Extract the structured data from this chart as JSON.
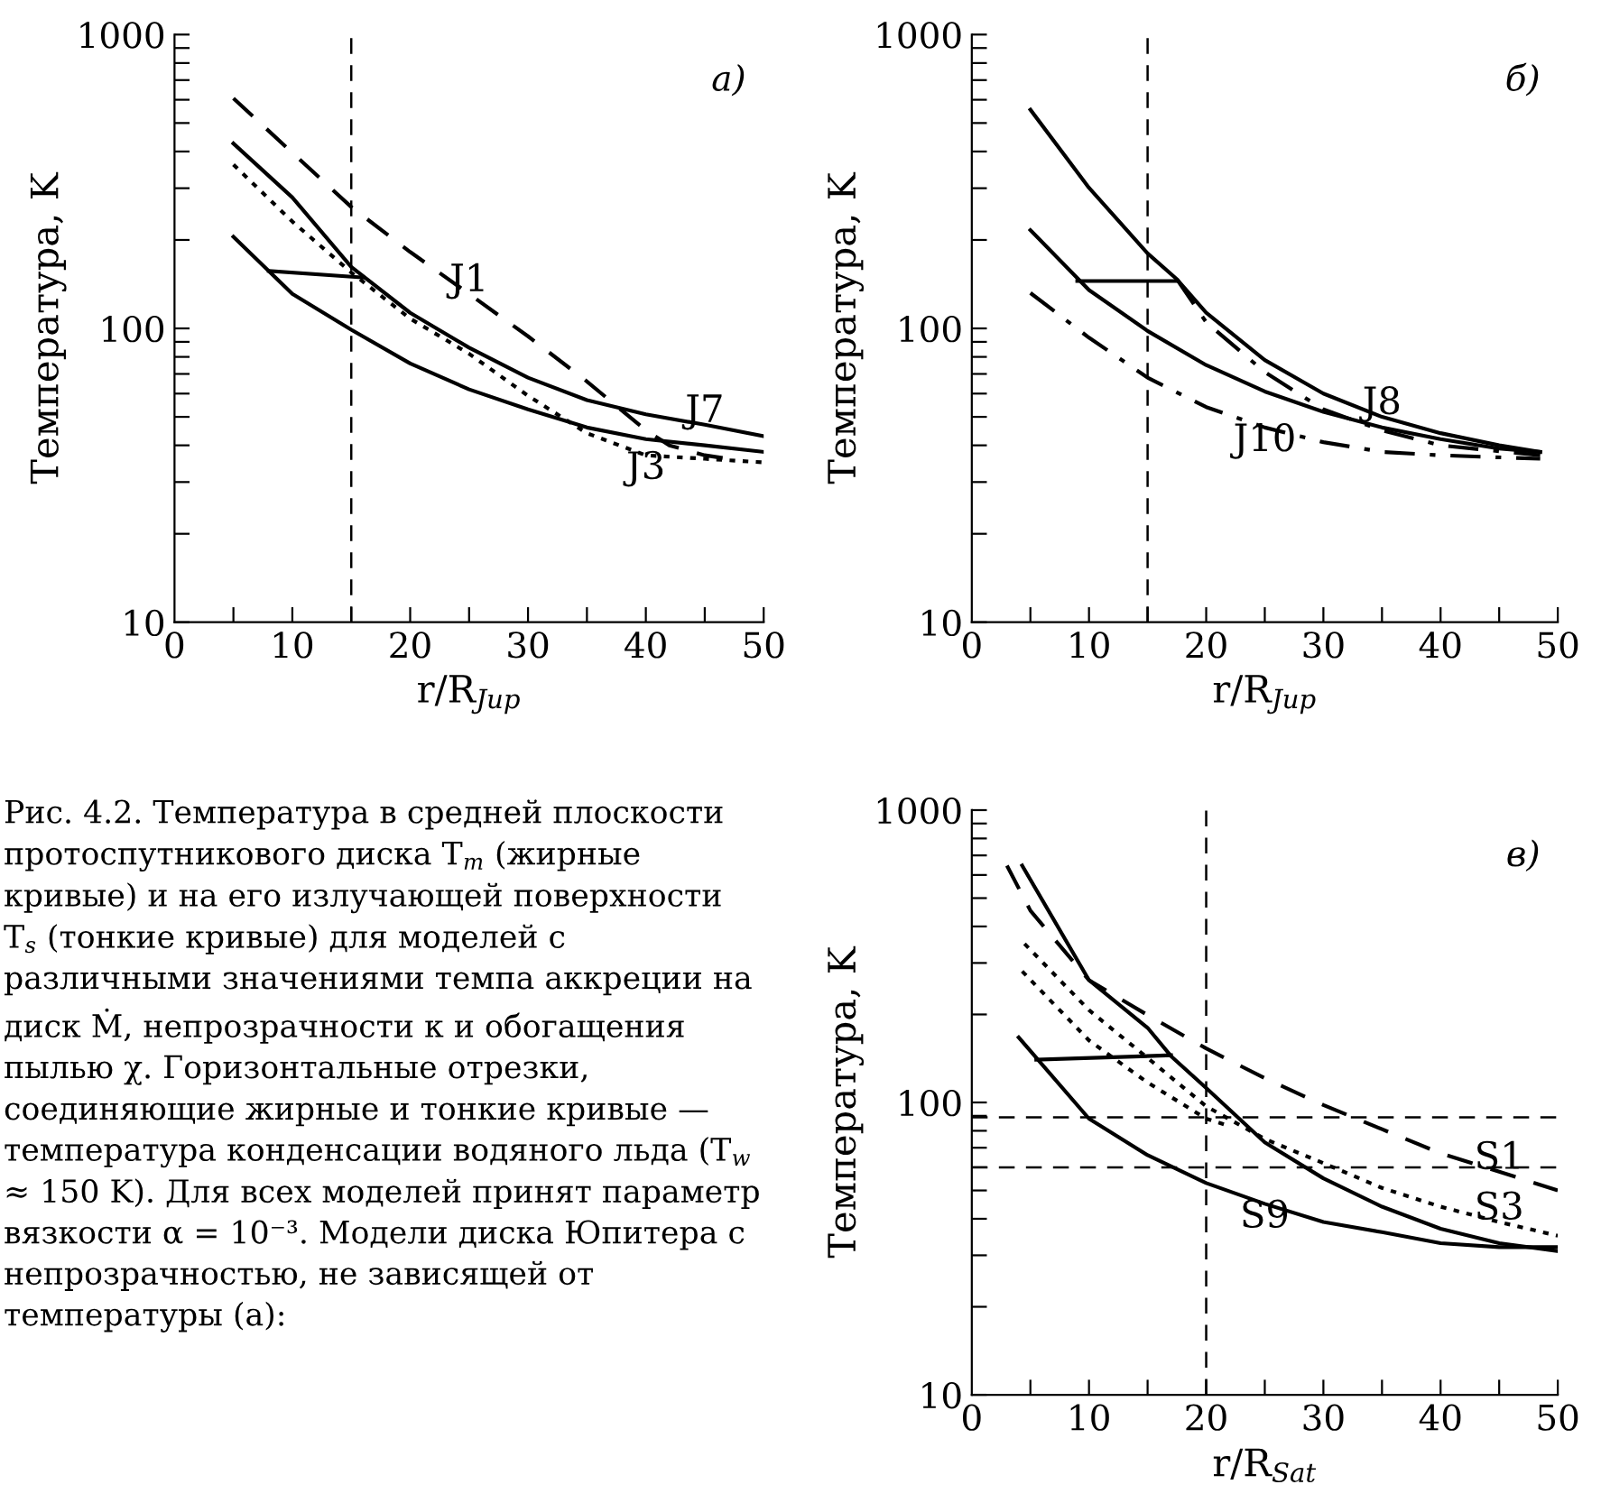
{
  "chart_data": [
    {
      "type": "line",
      "title": "а)",
      "xlabel": "r/R$_{Jup}$",
      "ylabel": "Температура, K",
      "log": true,
      "xlim": [
        0,
        50
      ],
      "ylim": [
        10,
        1000
      ],
      "xticks": [
        0,
        {
          "value": 5,
          "label": null
        },
        10,
        {
          "value": 15,
          "label": null
        },
        20,
        {
          "value": 25,
          "label": null
        },
        30,
        {
          "value": 35,
          "label": null
        },
        40,
        {
          "value": 45,
          "label": null
        },
        50
      ],
      "yticks": [
        10,
        {
          "value": 20,
          "label": null
        },
        {
          "value": 30,
          "label": null
        },
        {
          "value": 40,
          "label": null
        },
        {
          "value": 50,
          "label": null
        },
        {
          "value": 60,
          "label": null
        },
        {
          "value": 70,
          "label": null
        },
        {
          "value": 80,
          "label": null
        },
        {
          "value": 90,
          "label": null
        },
        100,
        {
          "value": 200,
          "label": null
        },
        {
          "value": 300,
          "label": null
        },
        {
          "value": 400,
          "label": null
        },
        {
          "value": 500,
          "label": null
        },
        {
          "value": 600,
          "label": null
        },
        {
          "value": 700,
          "label": null
        },
        {
          "value": 800,
          "label": null
        },
        {
          "value": 900,
          "label": null
        },
        1000
      ],
      "ref_lines": [
        {
          "axis": "x",
          "value": 15,
          "line_style": "dashed",
          "color": "#000000"
        }
      ],
      "series": [
        {
          "color": "#000000",
          "line_style": "solid",
          "x": [
            5,
            10,
            15,
            20,
            25,
            30,
            35,
            40,
            45,
            50
          ],
          "values": [
            426,
            279,
            162,
            113,
            86,
            68,
            57,
            51,
            47,
            43
          ]
        },
        {
          "color": "#000000",
          "line_style": "solid",
          "x": [
            5,
            10,
            15,
            20,
            25,
            30,
            35,
            40,
            45,
            50
          ],
          "values": [
            205,
            131,
            99,
            76,
            62,
            53,
            46,
            42,
            40,
            38
          ]
        },
        {
          "color": "#000000",
          "line_style": "solid",
          "x": [
            8,
            16
          ],
          "values": [
            157,
            149
          ]
        },
        {
          "color": "#000000",
          "line_style": "dashed",
          "x": [
            5,
            10,
            15,
            20,
            25,
            30,
            35,
            40,
            42,
            45,
            47
          ],
          "values": [
            607,
            396,
            259,
            182,
            131,
            94,
            66,
            45,
            40,
            37,
            36
          ]
        },
        {
          "color": "#000000",
          "line_style": "dotted",
          "x": [
            5,
            10,
            15,
            20,
            25,
            30,
            35,
            40,
            45,
            50
          ],
          "values": [
            361,
            231,
            155,
            108,
            82,
            59,
            44,
            37,
            36,
            35
          ]
        }
      ],
      "annotations": [
        {
          "text": "J1",
          "x": 25,
          "y": 131
        },
        {
          "text": "J7",
          "x": 45,
          "y": 47
        },
        {
          "text": "J3",
          "x": 40,
          "y": 37
        }
      ]
    },
    {
      "type": "line",
      "title": "б)",
      "xlabel": "r/R$_{Jup}$",
      "ylabel": "Температура, K",
      "log": true,
      "xlim": [
        0,
        50
      ],
      "ylim": [
        10,
        1000
      ],
      "xticks": [
        0,
        {
          "value": 5,
          "label": null
        },
        10,
        {
          "value": 15,
          "label": null
        },
        20,
        {
          "value": 25,
          "label": null
        },
        30,
        {
          "value": 35,
          "label": null
        },
        40,
        {
          "value": 45,
          "label": null
        },
        50
      ],
      "yticks": [
        10,
        {
          "value": 20,
          "label": null
        },
        {
          "value": 30,
          "label": null
        },
        {
          "value": 40,
          "label": null
        },
        {
          "value": 50,
          "label": null
        },
        {
          "value": 60,
          "label": null
        },
        {
          "value": 70,
          "label": null
        },
        {
          "value": 80,
          "label": null
        },
        {
          "value": 90,
          "label": null
        },
        100,
        {
          "value": 200,
          "label": null
        },
        {
          "value": 300,
          "label": null
        },
        {
          "value": 400,
          "label": null
        },
        {
          "value": 500,
          "label": null
        },
        {
          "value": 600,
          "label": null
        },
        {
          "value": 700,
          "label": null
        },
        {
          "value": 800,
          "label": null
        },
        {
          "value": 900,
          "label": null
        },
        1000
      ],
      "ref_lines": [
        {
          "axis": "x",
          "value": 15,
          "line_style": "dashed",
          "color": "#000000"
        }
      ],
      "series": [
        {
          "color": "#000000",
          "line_style": "solid",
          "x": [
            5,
            10,
            15,
            17.5,
            20,
            25,
            30,
            35,
            40,
            45,
            48.5
          ],
          "values": [
            555,
            301,
            180,
            147,
            113,
            78,
            60,
            50,
            44,
            40,
            38
          ]
        },
        {
          "color": "#000000",
          "line_style": "solid",
          "x": [
            5,
            10,
            15,
            20,
            25,
            30,
            35,
            40,
            45,
            48.5
          ],
          "values": [
            216,
            135,
            98,
            75,
            61,
            52,
            46,
            42,
            39,
            38
          ]
        },
        {
          "color": "#000000",
          "line_style": "solid",
          "x": [
            9,
            17.5
          ],
          "values": [
            145,
            145
          ]
        },
        {
          "color": "#000000",
          "line_style": "dashdot",
          "x": [
            17.5,
            20,
            25,
            30,
            35,
            40,
            48.5
          ],
          "values": [
            147,
            105,
            71,
            53,
            45,
            40,
            37
          ]
        },
        {
          "color": "#000000",
          "line_style": "dashdot",
          "x": [
            5,
            10,
            15,
            20,
            25,
            30,
            35,
            40,
            48.5
          ],
          "values": [
            132,
            93,
            68,
            54,
            46,
            41,
            38,
            37,
            36
          ]
        }
      ],
      "annotations": [
        {
          "text": "J8",
          "x": 35,
          "y": 50
        },
        {
          "text": "J10",
          "x": 25,
          "y": 46
        }
      ]
    },
    {
      "type": "line",
      "title": "в)",
      "xlabel": "r/R$_{Sat}$",
      "ylabel": "Температура, K",
      "log": true,
      "xlim": [
        0,
        50
      ],
      "ylim": [
        10,
        1000
      ],
      "xticks": [
        0,
        {
          "value": 5,
          "label": null
        },
        10,
        {
          "value": 15,
          "label": null
        },
        20,
        {
          "value": 25,
          "label": null
        },
        30,
        {
          "value": 35,
          "label": null
        },
        40,
        {
          "value": 45,
          "label": null
        },
        50
      ],
      "yticks": [
        10,
        {
          "value": 20,
          "label": null
        },
        {
          "value": 30,
          "label": null
        },
        {
          "value": 40,
          "label": null
        },
        {
          "value": 50,
          "label": null
        },
        {
          "value": 60,
          "label": null
        },
        {
          "value": 70,
          "label": null
        },
        {
          "value": 80,
          "label": null
        },
        {
          "value": 90,
          "label": null
        },
        100,
        {
          "value": 200,
          "label": null
        },
        {
          "value": 300,
          "label": null
        },
        {
          "value": 400,
          "label": null
        },
        {
          "value": 500,
          "label": null
        },
        {
          "value": 600,
          "label": null
        },
        {
          "value": 700,
          "label": null
        },
        {
          "value": 800,
          "label": null
        },
        {
          "value": 900,
          "label": null
        },
        1000
      ],
      "ref_lines": [
        {
          "axis": "x",
          "value": 20,
          "line_style": "dashed",
          "color": "#000000"
        },
        {
          "axis": "y",
          "value": 89,
          "line_style": "dashed",
          "color": "#000000"
        },
        {
          "axis": "y",
          "value": 60,
          "line_style": "dashed",
          "color": "#000000"
        }
      ],
      "series": [
        {
          "color": "#000000",
          "line_style": "solid",
          "x": [
            4.3,
            10,
            15,
            17,
            20,
            25,
            30,
            35,
            40,
            45,
            50
          ],
          "values": [
            646,
            262,
            180,
            144,
            112,
            73,
            55,
            44,
            37,
            33,
            31
          ]
        },
        {
          "color": "#000000",
          "line_style": "solid",
          "x": [
            4,
            10,
            15,
            20,
            25,
            30,
            35,
            40,
            45,
            50
          ],
          "values": [
            167,
            88,
            66,
            53,
            45,
            39,
            36,
            33,
            32,
            32
          ]
        },
        {
          "color": "#000000",
          "line_style": "solid",
          "x": [
            5.5,
            17
          ],
          "values": [
            140,
            145
          ]
        },
        {
          "color": "#000000",
          "line_style": "dashed",
          "x": [
            3,
            5,
            10,
            15,
            20,
            25,
            30,
            35,
            40,
            45,
            50
          ],
          "values": [
            646,
            453,
            262,
            199,
            153,
            121,
            98,
            81,
            67,
            58,
            50
          ]
        },
        {
          "color": "#000000",
          "line_style": "dotted",
          "x": [
            4.5,
            10,
            15,
            20,
            25,
            30,
            35,
            40,
            45,
            50
          ],
          "values": [
            349,
            207,
            142,
            97,
            75,
            62,
            51,
            44,
            39,
            35
          ]
        },
        {
          "color": "#000000",
          "line_style": "dotted",
          "x": [
            4.3,
            10,
            15,
            20,
            22
          ],
          "values": [
            281,
            163,
            117,
            88,
            83
          ]
        }
      ],
      "annotations": [
        {
          "text": "S1",
          "x": 45,
          "y": 58
        },
        {
          "text": "S3",
          "x": 45,
          "y": 39
        },
        {
          "text": "S9",
          "x": 25,
          "y": 45
        },
        "Рис. 4.2. Температура в средней плоскости протоспутникового диска T$_{m}$ (жирные кривые) и на его излучающей поверхности T$_{s}$ (тонкие кривые) для моделей с различными значениями темпа аккреции на диск Ṁ, непрозрачности κ и обогащения пылью χ. Горизонтальные отрезки, соединяющие жирные и тонкие кривые — температура конденсации водяного льда (T$_{w}$ ≈ 150 K). Для всех моделей принят параметр вязкости α = 10⁻³. Модели диска Юпитера с непрозрачностью, не зависящей от температуры (а):"
      ]
    }
  ]
}
